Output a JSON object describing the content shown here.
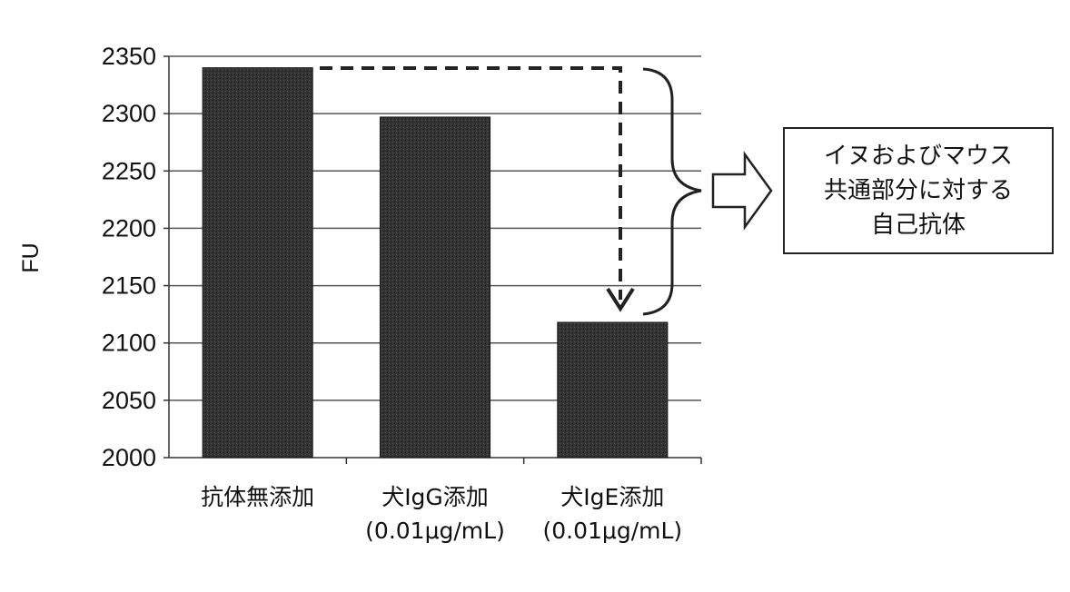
{
  "chart_data": {
    "type": "bar",
    "ylabel": "FU",
    "ylim": [
      2000,
      2350
    ],
    "yticks": [
      2000,
      2050,
      2100,
      2150,
      2200,
      2250,
      2300,
      2350
    ],
    "categories": [
      [
        "抗体無添加"
      ],
      [
        "犬IgG添加",
        "(0.01μg/mL)"
      ],
      [
        "犬IgE添加",
        "(0.01μg/mL)"
      ]
    ],
    "values": [
      2340,
      2297,
      2118
    ],
    "grid": true,
    "bar_color": "#2e2e2e",
    "annotation": {
      "lines": [
        "イヌおよびマウス",
        "共通部分に対する",
        "自己抗体"
      ]
    }
  }
}
